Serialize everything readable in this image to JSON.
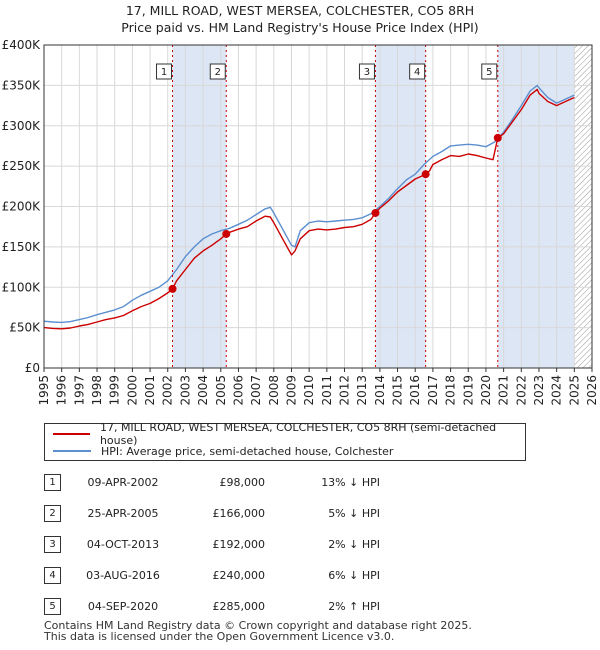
{
  "chart_data": {
    "type": "line",
    "title": "17, MILL ROAD, WEST MERSEA, COLCHESTER, CO5 8RH",
    "subtitle": "Price paid vs. HM Land Registry's House Price Index (HPI)",
    "xlabel": "",
    "ylabel": "",
    "xlim": [
      1995,
      2026
    ],
    "ylim": [
      0,
      400000
    ],
    "grid": true,
    "x_ticks": [
      "1995",
      "1996",
      "1997",
      "1998",
      "1999",
      "2000",
      "2001",
      "2002",
      "2003",
      "2004",
      "2005",
      "2006",
      "2007",
      "2008",
      "2009",
      "2010",
      "2011",
      "2012",
      "2013",
      "2014",
      "2015",
      "2016",
      "2017",
      "2018",
      "2019",
      "2020",
      "2021",
      "2022",
      "2023",
      "2024",
      "2025",
      "2026"
    ],
    "y_ticks": [
      {
        "value": 0,
        "label": "£0"
      },
      {
        "value": 50000,
        "label": "£50K"
      },
      {
        "value": 100000,
        "label": "£100K"
      },
      {
        "value": 150000,
        "label": "£150K"
      },
      {
        "value": 200000,
        "label": "£200K"
      },
      {
        "value": 250000,
        "label": "£250K"
      },
      {
        "value": 300000,
        "label": "£300K"
      },
      {
        "value": 350000,
        "label": "£350K"
      },
      {
        "value": 400000,
        "label": "£400K"
      }
    ],
    "shaded_periods": [
      [
        2002.27,
        2005.31
      ],
      [
        2013.75,
        2016.59
      ],
      [
        2020.67,
        2025.0
      ]
    ],
    "future_hatch_from": 2025.0,
    "series": [
      {
        "name": "17, MILL ROAD, WEST MERSEA, COLCHESTER, CO5 8RH (semi-detached house)",
        "color": "#cc0000",
        "x": [
          1995.0,
          1995.5,
          1996.0,
          1996.5,
          1997.0,
          1997.5,
          1998.0,
          1998.5,
          1999.0,
          1999.5,
          2000.0,
          2000.5,
          2001.0,
          2001.5,
          2002.0,
          2002.27,
          2002.5,
          2003.0,
          2003.5,
          2004.0,
          2004.5,
          2005.0,
          2005.31,
          2005.5,
          2006.0,
          2006.5,
          2007.0,
          2007.5,
          2007.8,
          2008.0,
          2008.5,
          2009.0,
          2009.2,
          2009.5,
          2010.0,
          2010.5,
          2011.0,
          2011.5,
          2012.0,
          2012.5,
          2013.0,
          2013.5,
          2013.75,
          2014.0,
          2014.5,
          2015.0,
          2015.5,
          2016.0,
          2016.59,
          2016.8,
          2017.0,
          2017.5,
          2018.0,
          2018.5,
          2019.0,
          2019.5,
          2020.0,
          2020.4,
          2020.67,
          2021.0,
          2021.5,
          2022.0,
          2022.5,
          2022.9,
          2023.0,
          2023.5,
          2024.0,
          2024.5,
          2025.0
        ],
        "values": [
          50000,
          49000,
          48500,
          49500,
          52000,
          54000,
          57000,
          60000,
          62000,
          65000,
          71000,
          76000,
          80000,
          86000,
          93000,
          98000,
          108000,
          122000,
          136000,
          145000,
          152000,
          160000,
          166000,
          168000,
          172000,
          175000,
          182000,
          188000,
          187000,
          180000,
          160000,
          140000,
          145000,
          160000,
          170000,
          172000,
          171000,
          172000,
          174000,
          175000,
          178000,
          184000,
          192000,
          198000,
          207000,
          218000,
          226000,
          234000,
          240000,
          244000,
          252000,
          258000,
          263000,
          262000,
          265000,
          263000,
          260000,
          258000,
          285000,
          290000,
          305000,
          320000,
          338000,
          345000,
          340000,
          330000,
          325000,
          330000,
          335000
        ]
      },
      {
        "name": "HPI: Average price, semi-detached house, Colchester",
        "color": "#5b8fd0",
        "x": [
          1995.0,
          1995.5,
          1996.0,
          1996.5,
          1997.0,
          1997.5,
          1998.0,
          1998.5,
          1999.0,
          1999.5,
          2000.0,
          2000.5,
          2001.0,
          2001.5,
          2002.0,
          2002.5,
          2003.0,
          2003.5,
          2004.0,
          2004.5,
          2005.0,
          2005.5,
          2006.0,
          2006.5,
          2007.0,
          2007.5,
          2007.8,
          2008.0,
          2008.5,
          2009.0,
          2009.2,
          2009.5,
          2010.0,
          2010.5,
          2011.0,
          2011.5,
          2012.0,
          2012.5,
          2013.0,
          2013.5,
          2014.0,
          2014.5,
          2015.0,
          2015.5,
          2016.0,
          2016.5,
          2017.0,
          2017.5,
          2018.0,
          2018.5,
          2019.0,
          2019.5,
          2020.0,
          2020.5,
          2021.0,
          2021.5,
          2022.0,
          2022.5,
          2022.9,
          2023.0,
          2023.5,
          2024.0,
          2024.5,
          2025.0
        ],
        "values": [
          58000,
          57000,
          56500,
          57500,
          60000,
          62500,
          66000,
          69000,
          72000,
          76000,
          84000,
          90000,
          95000,
          100000,
          108000,
          122000,
          138000,
          150000,
          160000,
          166000,
          170000,
          173000,
          178000,
          183000,
          190000,
          197000,
          199000,
          192000,
          172000,
          152000,
          150000,
          170000,
          180000,
          182000,
          181000,
          182000,
          183000,
          184000,
          186000,
          191000,
          200000,
          210000,
          222000,
          233000,
          240000,
          252000,
          262000,
          268000,
          275000,
          276000,
          277000,
          276000,
          274000,
          280000,
          292000,
          308000,
          325000,
          343000,
          350000,
          347000,
          335000,
          328000,
          333000,
          338000
        ]
      }
    ],
    "sales": [
      {
        "id": "1",
        "x": 2002.27,
        "value": 98000
      },
      {
        "id": "2",
        "x": 2005.31,
        "value": 166000
      },
      {
        "id": "3",
        "x": 2013.75,
        "value": 192000
      },
      {
        "id": "4",
        "x": 2016.59,
        "value": 240000
      },
      {
        "id": "5",
        "x": 2020.67,
        "value": 285000
      }
    ]
  },
  "legend": {
    "property": "17, MILL ROAD, WEST MERSEA, COLCHESTER, CO5 8RH (semi-detached house)",
    "hpi": "HPI: Average price, semi-detached house, Colchester"
  },
  "transactions": [
    {
      "num": "1",
      "date": "09-APR-2002",
      "price": "£98,000",
      "hpi": "13% ↓ HPI"
    },
    {
      "num": "2",
      "date": "25-APR-2005",
      "price": "£166,000",
      "hpi": "5% ↓ HPI"
    },
    {
      "num": "3",
      "date": "04-OCT-2013",
      "price": "£192,000",
      "hpi": "2% ↓ HPI"
    },
    {
      "num": "4",
      "date": "03-AUG-2016",
      "price": "£240,000",
      "hpi": "6% ↓ HPI"
    },
    {
      "num": "5",
      "date": "04-SEP-2020",
      "price": "£285,000",
      "hpi": "2% ↑ HPI"
    }
  ],
  "footer": {
    "line1": "Contains HM Land Registry data © Crown copyright and database right 2025.",
    "line2": "This data is licensed under the Open Government Licence v3.0."
  }
}
